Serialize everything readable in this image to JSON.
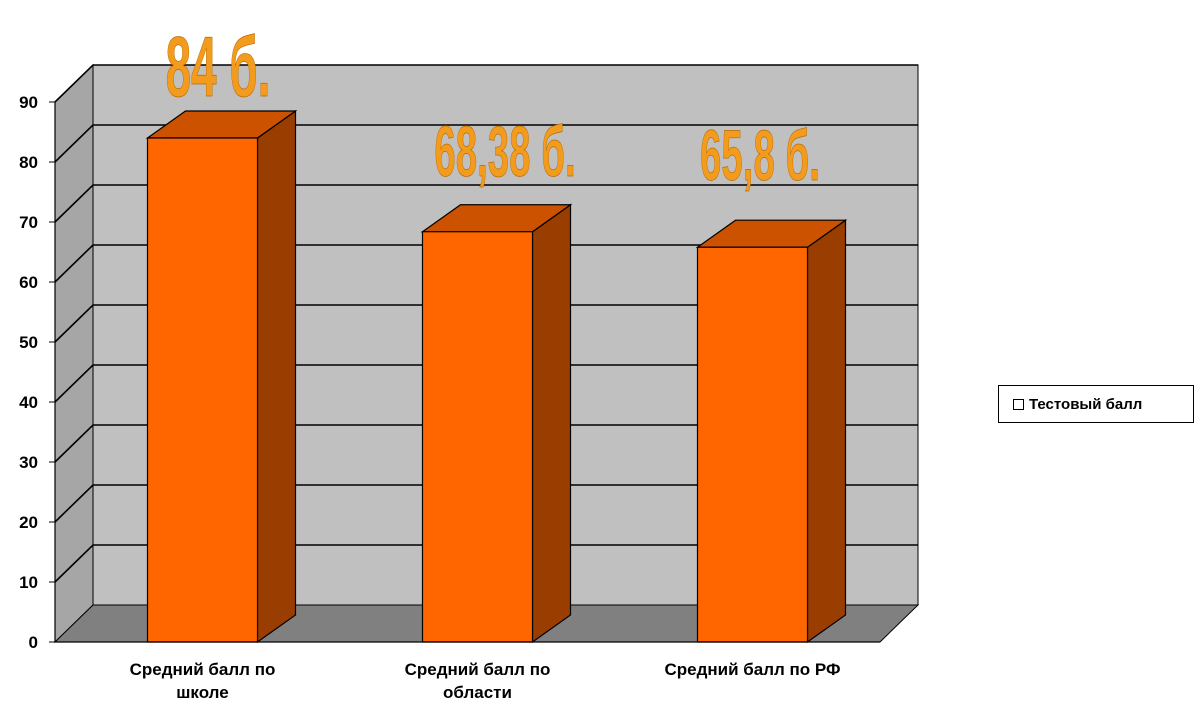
{
  "chart_data": {
    "type": "bar",
    "style": "3d-column",
    "categories": [
      "Средний балл по школе",
      "Средний балл по области",
      "Средний балл по РФ"
    ],
    "category_lines": [
      [
        "Средний балл по",
        "школе"
      ],
      [
        "Средний балл по",
        "области"
      ],
      [
        "Средний балл по РФ"
      ]
    ],
    "series": [
      {
        "name": "Тестовый балл",
        "values": [
          84,
          68.38,
          65.8
        ],
        "color": "#FF6600"
      }
    ],
    "data_labels": [
      "84 б.",
      "68,38 б.",
      "65,8 б."
    ],
    "yticks": [
      "0",
      "10",
      "20",
      "30",
      "40",
      "50",
      "60",
      "70",
      "80",
      "90"
    ],
    "ylim": [
      0,
      90
    ],
    "grid": true,
    "legend_position": "right",
    "colors": {
      "wall": "#C0C0C0",
      "floor": "#808080",
      "bar_front": "#FF6600",
      "bar_top": "#CC5200",
      "bar_side": "#993D00",
      "label": "#F29B1D"
    }
  }
}
